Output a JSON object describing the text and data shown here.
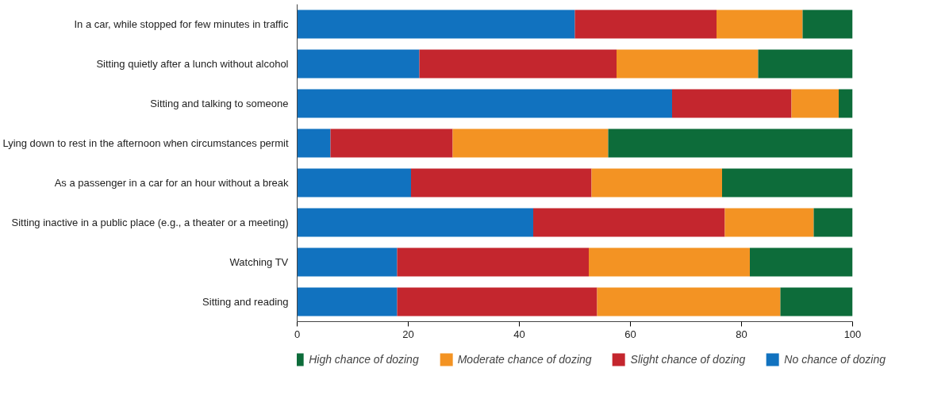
{
  "chart_data": {
    "type": "bar",
    "orientation": "horizontal",
    "stacked": true,
    "categories": [
      "In a car, while stopped for few minutes in traffic",
      "Sitting quietly after a lunch without alcohol",
      "Sitting and talking to someone",
      "Lying down to rest in the afternoon when circumstances permit",
      "As a passenger in a car for an hour without a break",
      "Sitting inactive in a public place (e.g., a theater or a meeting)",
      "Watching TV",
      "Sitting and reading"
    ],
    "series": [
      {
        "name": "No chance of dozing",
        "color": "#1172bf",
        "values": [
          50,
          22,
          67.5,
          6,
          20.5,
          42.5,
          18,
          18
        ]
      },
      {
        "name": "Slight chance of dozing",
        "color": "#c4262e",
        "values": [
          25.5,
          35.5,
          21.5,
          22,
          32.5,
          34.5,
          34.5,
          36
        ]
      },
      {
        "name": "Moderate chance of dozing",
        "color": "#f39323",
        "values": [
          15.5,
          25.5,
          8.5,
          28,
          23.5,
          16,
          29,
          33
        ]
      },
      {
        "name": "High chance of dozing",
        "color": "#0d6c3a",
        "values": [
          9,
          17,
          2.5,
          44,
          23.5,
          7,
          18.5,
          13
        ]
      }
    ],
    "xlim": [
      0,
      100
    ],
    "xticks": [
      0,
      20,
      40,
      60,
      80,
      100
    ],
    "grid": false,
    "legend": "bottom"
  }
}
